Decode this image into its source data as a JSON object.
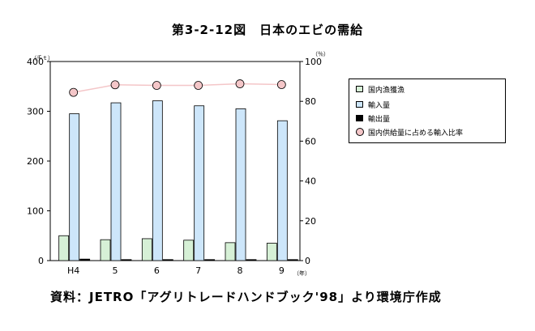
{
  "chart_data": {
    "type": "bar",
    "title": "第3-2-12図　日本のエビの需給",
    "categories": [
      "H4",
      "5",
      "6",
      "7",
      "8",
      "9"
    ],
    "series": [
      {
        "name": "国内漁獲漁",
        "values": [
          50,
          42,
          44,
          41,
          36,
          35
        ],
        "color": "#d6f0d6",
        "axis": "left"
      },
      {
        "name": "輸入量",
        "values": [
          295,
          317,
          321,
          311,
          305,
          281
        ],
        "color": "#cde6fa",
        "axis": "left"
      },
      {
        "name": "輸出量",
        "values": [
          3,
          2,
          2,
          2,
          2,
          2
        ],
        "color": "#000000",
        "axis": "left"
      },
      {
        "name": "国内供給量に占める輸入比率",
        "type": "line",
        "values": [
          84.5,
          88.3,
          88,
          88,
          88.8,
          88.4
        ],
        "color": "#f4c6c8",
        "axis": "right"
      }
    ],
    "y_left": {
      "unit": "（千ｔ）",
      "ylim": [
        0,
        400
      ],
      "ticks": [
        "0",
        "100",
        "200",
        "300",
        "400"
      ]
    },
    "y_right": {
      "unit": "（％）",
      "ylim": [
        0,
        100
      ],
      "ticks": [
        "0",
        "20",
        "40",
        "60",
        "80",
        "100"
      ]
    },
    "x_unit": "（年）",
    "legend_position": "right",
    "grid": false
  },
  "source_note": "資料：JETRO「アグリトレードハンドブック'98」より環境庁作成"
}
